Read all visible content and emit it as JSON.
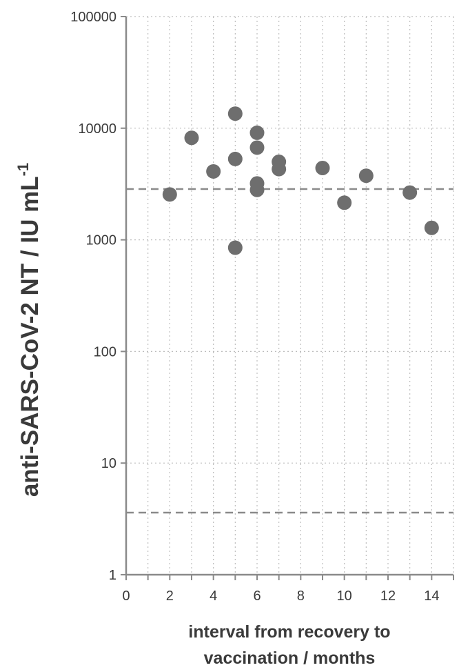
{
  "chart_data": {
    "type": "scatter",
    "ylabel_main": "anti-SARS-CoV-2 NT  /  IU mL",
    "ylabel_sup": "-1",
    "xlabel_line1": "interval from recovery to",
    "xlabel_line2": "vaccination / months",
    "xlim": [
      0,
      15
    ],
    "ylim": [
      1,
      100000
    ],
    "y_scale": "log",
    "x_ticks": [
      "0",
      "2",
      "4",
      "6",
      "8",
      "10",
      "12",
      "14"
    ],
    "y_ticks": [
      "1",
      "10",
      "100",
      "1000",
      "10000",
      "100000"
    ],
    "grid": "dotted",
    "reference_lines": [
      2850,
      3.6
    ],
    "marker_color": "#6e6e6e",
    "points": [
      {
        "x": 2,
        "y": 2550
      },
      {
        "x": 3,
        "y": 8200
      },
      {
        "x": 4,
        "y": 4100
      },
      {
        "x": 5,
        "y": 13500
      },
      {
        "x": 5,
        "y": 5300
      },
      {
        "x": 5,
        "y": 850
      },
      {
        "x": 6,
        "y": 9100
      },
      {
        "x": 6,
        "y": 6700
      },
      {
        "x": 6,
        "y": 3200
      },
      {
        "x": 6,
        "y": 2800
      },
      {
        "x": 7,
        "y": 5000
      },
      {
        "x": 7,
        "y": 4300
      },
      {
        "x": 9,
        "y": 4400
      },
      {
        "x": 10,
        "y": 2150
      },
      {
        "x": 11,
        "y": 3750
      },
      {
        "x": 13,
        "y": 2650
      },
      {
        "x": 14,
        "y": 1280
      }
    ]
  }
}
